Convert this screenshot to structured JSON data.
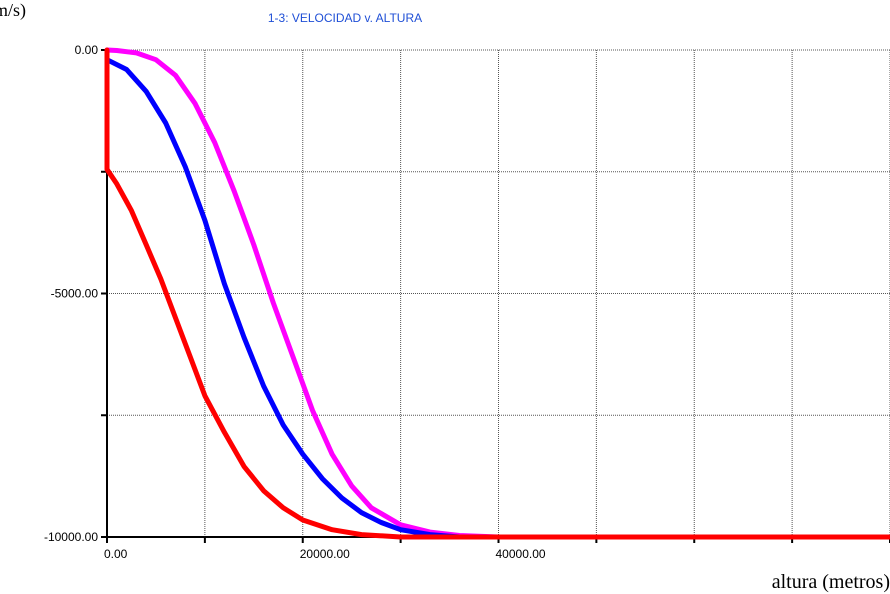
{
  "chart_data": {
    "type": "line",
    "title": "1-3: VELOCIDAD v. ALTURA",
    "ylabel": "m/s)",
    "xlabel": "altura (metros)",
    "xlim": [
      0,
      80000
    ],
    "ylim": [
      -10000,
      0
    ],
    "grid": true,
    "x_tick_labels": [
      {
        "value": 0,
        "label": "0.00"
      },
      {
        "value": 20000,
        "label": "20000.00"
      },
      {
        "value": 40000,
        "label": "40000.00"
      }
    ],
    "y_tick_labels": [
      {
        "value": 0,
        "label": "0.00"
      },
      {
        "value": -5000,
        "label": "-5000.00"
      },
      {
        "value": -10000,
        "label": "-10000.00"
      }
    ],
    "series": [
      {
        "color": "#ff00ff",
        "points": [
          [
            0,
            0
          ],
          [
            1000,
            -10
          ],
          [
            3000,
            -60
          ],
          [
            5000,
            -200
          ],
          [
            7000,
            -520
          ],
          [
            9000,
            -1100
          ],
          [
            11000,
            -1900
          ],
          [
            13000,
            -2900
          ],
          [
            15000,
            -4000
          ],
          [
            17000,
            -5200
          ],
          [
            19000,
            -6300
          ],
          [
            21000,
            -7400
          ],
          [
            23000,
            -8300
          ],
          [
            25000,
            -8950
          ],
          [
            27000,
            -9400
          ],
          [
            30000,
            -9750
          ],
          [
            33000,
            -9900
          ],
          [
            36000,
            -9970
          ],
          [
            40000,
            -10000
          ],
          [
            80000,
            -10000
          ]
        ]
      },
      {
        "color": "#0000ff",
        "points": [
          [
            0,
            -200
          ],
          [
            2000,
            -400
          ],
          [
            4000,
            -850
          ],
          [
            6000,
            -1500
          ],
          [
            8000,
            -2400
          ],
          [
            10000,
            -3500
          ],
          [
            12000,
            -4800
          ],
          [
            14000,
            -5900
          ],
          [
            16000,
            -6900
          ],
          [
            18000,
            -7700
          ],
          [
            20000,
            -8300
          ],
          [
            22000,
            -8800
          ],
          [
            24000,
            -9200
          ],
          [
            26000,
            -9500
          ],
          [
            28000,
            -9700
          ],
          [
            30000,
            -9850
          ],
          [
            33000,
            -9950
          ],
          [
            36000,
            -10000
          ],
          [
            80000,
            -10000
          ]
        ]
      },
      {
        "color": "#ff0000",
        "points": [
          [
            0,
            0
          ],
          [
            0,
            -2450
          ],
          [
            1000,
            -2750
          ],
          [
            2500,
            -3300
          ],
          [
            4000,
            -4000
          ],
          [
            5500,
            -4700
          ],
          [
            7000,
            -5500
          ],
          [
            8500,
            -6300
          ],
          [
            10000,
            -7100
          ],
          [
            12000,
            -7850
          ],
          [
            14000,
            -8550
          ],
          [
            16000,
            -9050
          ],
          [
            18000,
            -9400
          ],
          [
            20000,
            -9650
          ],
          [
            23000,
            -9850
          ],
          [
            26000,
            -9950
          ],
          [
            30000,
            -10000
          ],
          [
            80000,
            -10000
          ]
        ]
      }
    ]
  }
}
